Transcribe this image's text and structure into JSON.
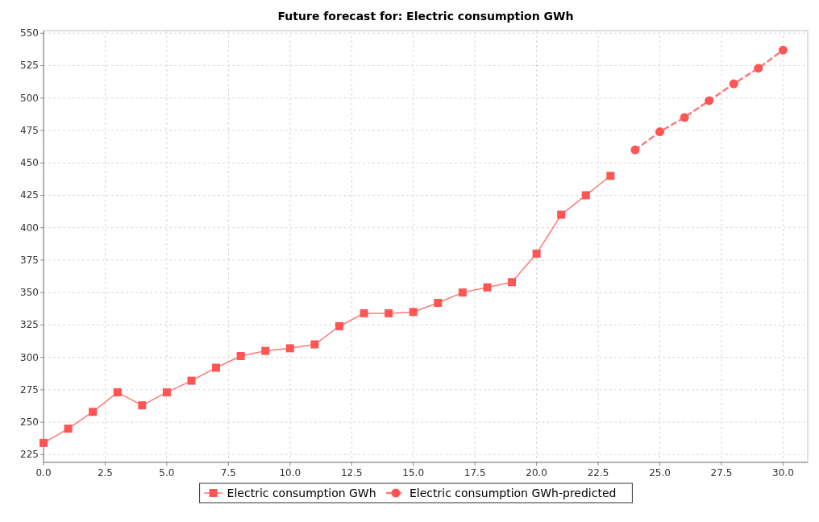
{
  "chart_data": {
    "type": "line",
    "title": "Future forecast for: Electric consumption GWh",
    "xlim": [
      0,
      31
    ],
    "xticks": [
      {
        "value": 0,
        "label": "0.0"
      },
      {
        "value": 2.5,
        "label": "2.5"
      },
      {
        "value": 5,
        "label": "5.0"
      },
      {
        "value": 7.5,
        "label": "7.5"
      },
      {
        "value": 10,
        "label": "10.0"
      },
      {
        "value": 12.5,
        "label": "12.5"
      },
      {
        "value": 15,
        "label": "15.0"
      },
      {
        "value": 17.5,
        "label": "17.5"
      },
      {
        "value": 20,
        "label": "20.0"
      },
      {
        "value": 22.5,
        "label": "22.5"
      },
      {
        "value": 25,
        "label": "25.0"
      },
      {
        "value": 27.5,
        "label": "27.5"
      },
      {
        "value": 30,
        "label": "30.0"
      }
    ],
    "ylim": [
      219,
      552
    ],
    "yticks": [
      225,
      250,
      275,
      300,
      325,
      350,
      375,
      400,
      425,
      450,
      475,
      500,
      525,
      550
    ],
    "grid": true,
    "legend": "bottom",
    "series": [
      {
        "name": "Electric consumption GWh",
        "color": "#ff5555",
        "marker": "square",
        "line_style": "solid",
        "x": [
          0,
          1,
          2,
          3,
          4,
          5,
          6,
          7,
          8,
          9,
          10,
          11,
          12,
          13,
          14,
          15,
          16,
          17,
          18,
          19,
          20,
          21,
          22,
          23
        ],
        "values": [
          234,
          245,
          258,
          273,
          263,
          273,
          282,
          292,
          301,
          305,
          307,
          310,
          324,
          334,
          334,
          335,
          342,
          350,
          354,
          358,
          380,
          410,
          425,
          440
        ]
      },
      {
        "name": "Electric consumption GWh-predicted",
        "color": "#ff5555",
        "marker": "circle",
        "line_style": "dashed",
        "x": [
          24,
          25,
          26,
          27,
          28,
          29,
          30
        ],
        "values": [
          460,
          474,
          485,
          498,
          511,
          523,
          537
        ]
      }
    ]
  }
}
